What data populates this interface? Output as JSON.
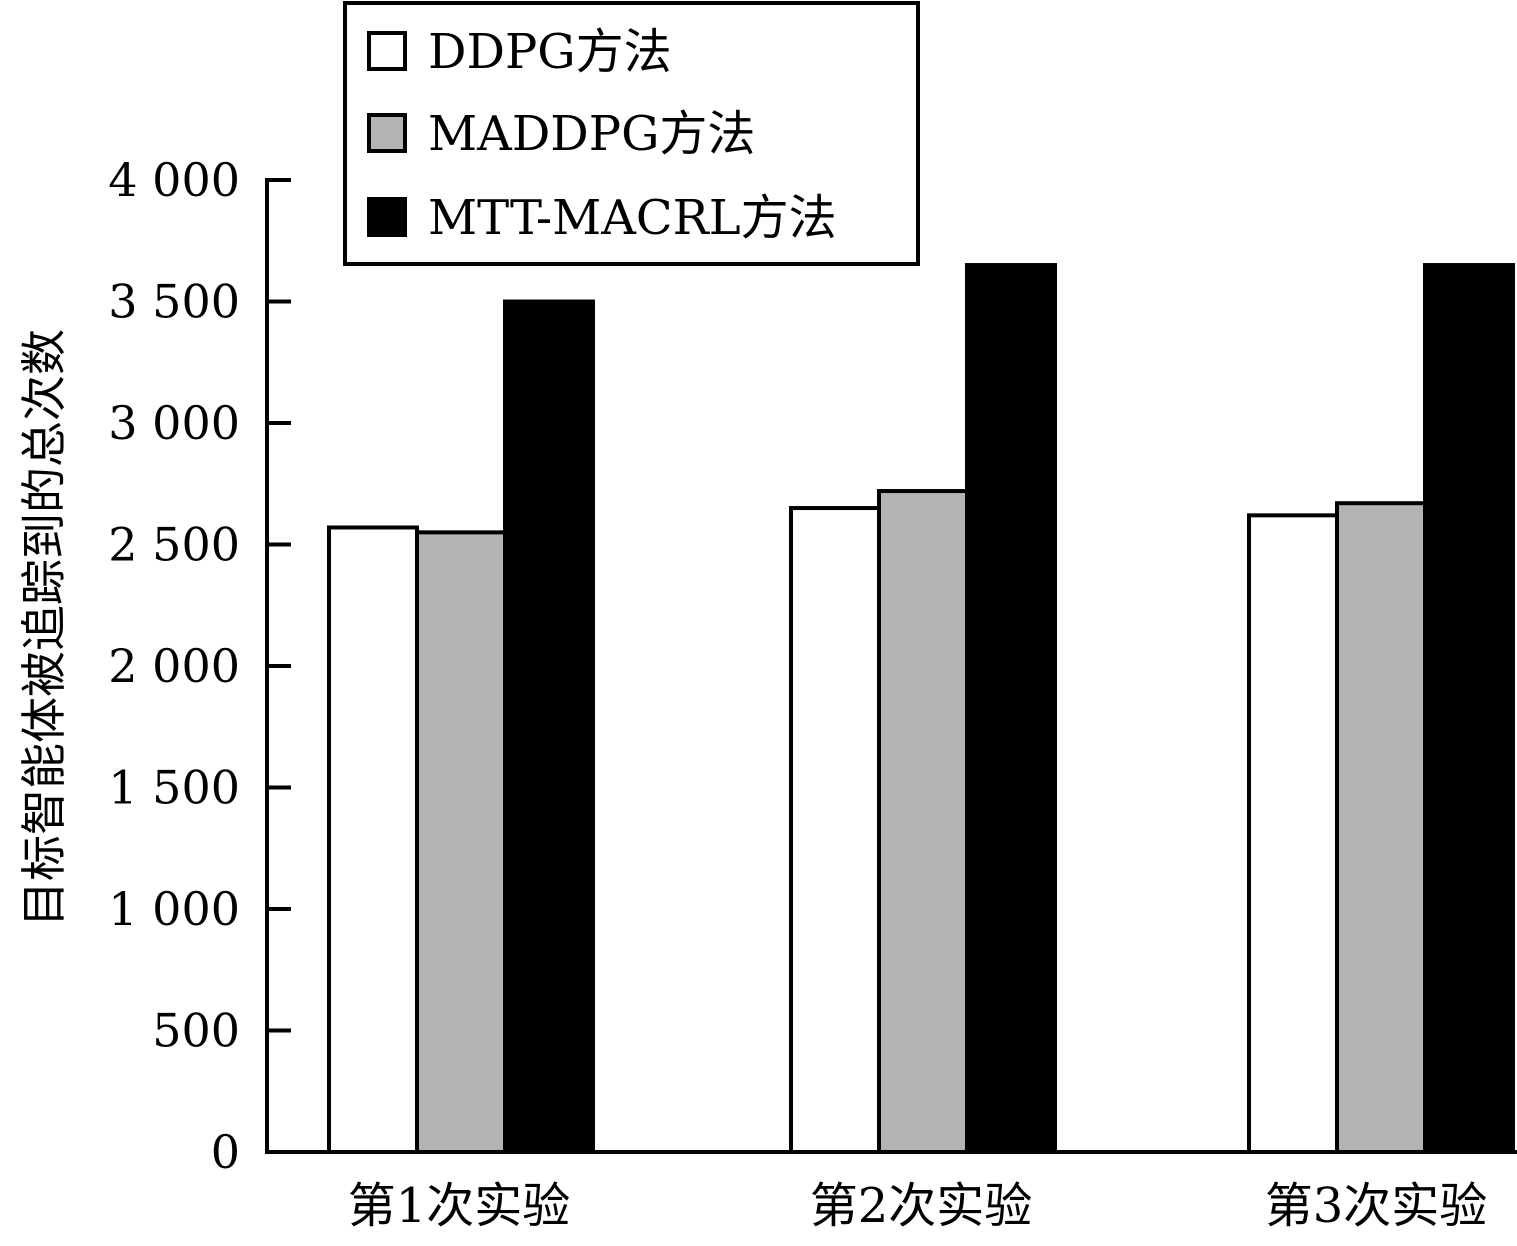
{
  "chart_data": {
    "type": "bar",
    "title": "",
    "xlabel": "",
    "ylabel": "目标智能体被追踪到的总次数",
    "categories": [
      "第1次实验",
      "第2次实验",
      "第3次实验"
    ],
    "ylim": [
      0,
      4000
    ],
    "yticks": [
      0,
      500,
      1000,
      1500,
      2000,
      2500,
      3000,
      3500,
      4000
    ],
    "ytick_labels": [
      "0",
      "500",
      "1 000",
      "1 500",
      "2 000",
      "2 500",
      "3 000",
      "3 500",
      "4 000"
    ],
    "grid": false,
    "legend_position": "top-center",
    "series": [
      {
        "name": "DDPG方法",
        "color": "#ffffff",
        "values": [
          2570,
          2650,
          2620
        ]
      },
      {
        "name": "MADDPG方法",
        "color": "#b3b3b3",
        "values": [
          2550,
          2720,
          2670
        ]
      },
      {
        "name": "MTT-MACRL方法",
        "color": "#000000",
        "values": [
          3500,
          3650,
          3650
        ]
      }
    ]
  }
}
